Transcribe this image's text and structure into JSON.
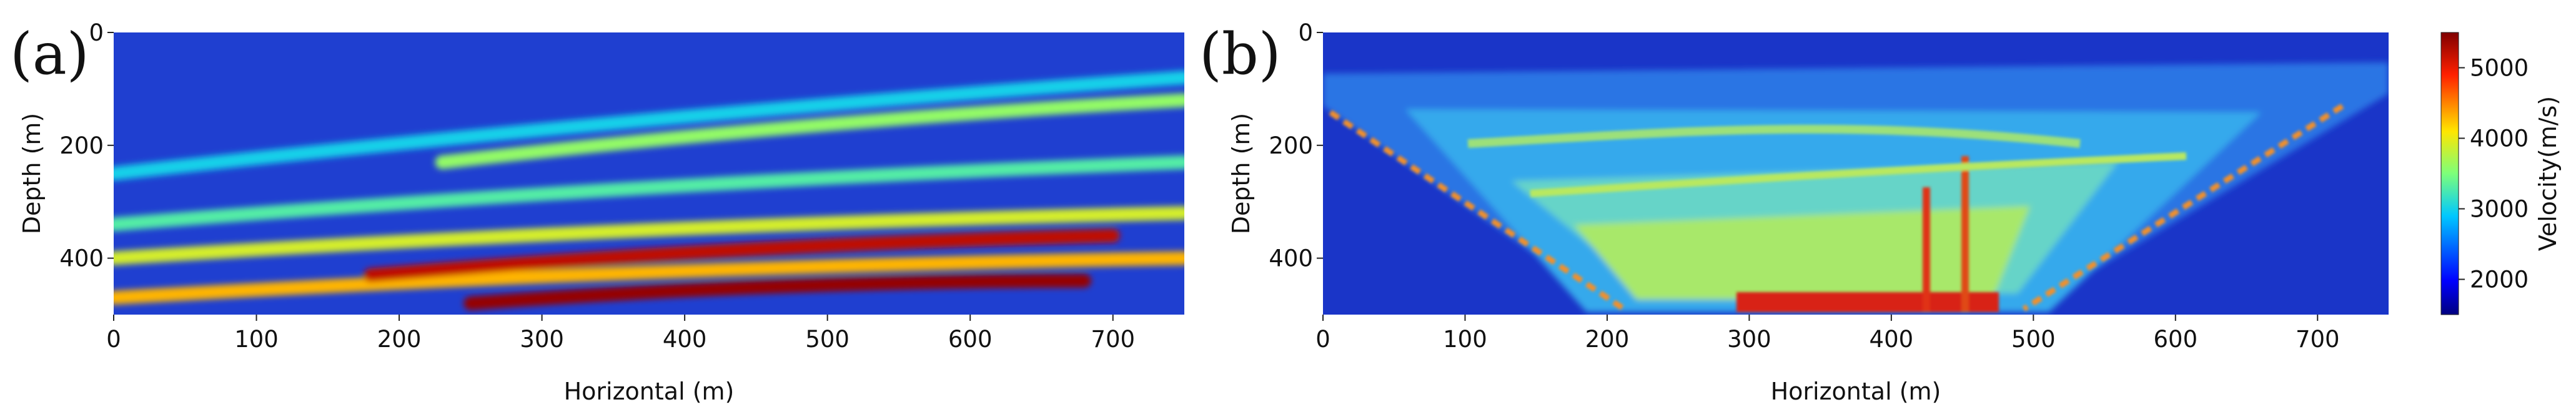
{
  "chart_data": [
    {
      "type": "heatmap",
      "panel_label": "(a)",
      "xlabel": "Horizontal (m)",
      "ylabel": "Depth (m)",
      "xlim": [
        0,
        750
      ],
      "ylim": [
        500,
        0
      ],
      "xticks": [
        "0",
        "100",
        "200",
        "300",
        "400",
        "500",
        "600",
        "700"
      ],
      "yticks": [
        "0",
        "200",
        "400"
      ],
      "colormap": "jet",
      "layers": [
        {
          "x_start": 0,
          "y_start": 250,
          "x_end": 750,
          "y_end": 80,
          "velocity": 3000
        },
        {
          "x_start": 230,
          "y_start": 230,
          "x_end": 750,
          "y_end": 120,
          "velocity": 3600
        },
        {
          "x_start": 0,
          "y_start": 340,
          "x_end": 750,
          "y_end": 230,
          "velocity": 3300
        },
        {
          "x_start": 0,
          "y_start": 400,
          "x_end": 750,
          "y_end": 320,
          "velocity": 3900
        },
        {
          "x_start": 0,
          "y_start": 470,
          "x_end": 750,
          "y_end": 400,
          "velocity": 4300
        },
        {
          "x_start": 180,
          "y_start": 430,
          "x_end": 700,
          "y_end": 360,
          "velocity": 5200
        },
        {
          "x_start": 250,
          "y_start": 480,
          "x_end": 680,
          "y_end": 440,
          "velocity": 5400
        }
      ]
    },
    {
      "type": "heatmap",
      "panel_label": "(b)",
      "xlabel": "Horizontal (m)",
      "ylabel": "Depth (m)",
      "xlim": [
        0,
        750
      ],
      "ylim": [
        500,
        0
      ],
      "xticks": [
        "0",
        "100",
        "200",
        "300",
        "400",
        "500",
        "600",
        "700"
      ],
      "yticks": [
        "0",
        "200",
        "400"
      ],
      "colormap": "jet",
      "colorbar": {
        "label": "Velocity(m/s)",
        "range": [
          1500,
          5500
        ],
        "ticks": [
          "2000",
          "3000",
          "4000",
          "5000"
        ]
      }
    }
  ],
  "colors": {
    "background_blue": "#1f3fd0",
    "cyan": "#2fb7e8",
    "green": "#8be06a",
    "yellow": "#e8e83a",
    "orange": "#f0962a",
    "red": "#c81818"
  }
}
